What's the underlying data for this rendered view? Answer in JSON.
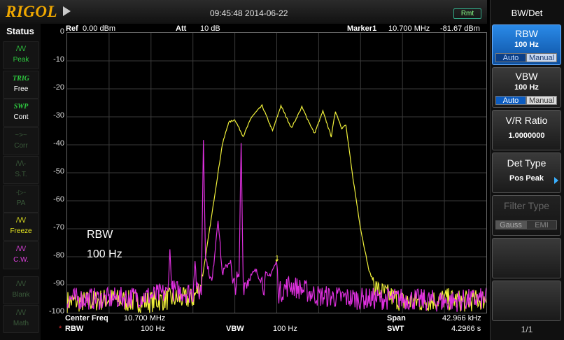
{
  "header": {
    "logo": "RIGOL",
    "datetime": "09:45:48 2014-06-22",
    "remote_badge": "Rmt"
  },
  "status_panel": {
    "title": "Status",
    "items": [
      {
        "icon": "peak-wave-icon",
        "label": "Peak",
        "state": "active-green"
      },
      {
        "icon": "trig-text-icon",
        "top": "TRIG",
        "label": "Free",
        "state": "active-green"
      },
      {
        "icon": "swp-text-icon",
        "top": "SWP",
        "label": "Cont",
        "state": "active-green"
      },
      {
        "icon": "corr-icon",
        "label": "Corr",
        "state": "dim"
      },
      {
        "icon": "st-icon",
        "label": "S.T.",
        "state": "dim"
      },
      {
        "icon": "pa-icon",
        "label": "PA",
        "state": "dim"
      },
      {
        "icon": "freeze-wave-icon",
        "label": "Freeze",
        "state": "active-yellow"
      },
      {
        "icon": "cw-wave-icon",
        "label": "C.W.",
        "state": "active-magenta"
      },
      {
        "icon": "blank-wave-icon",
        "label": "Blank",
        "state": "dim"
      },
      {
        "icon": "math-wave-icon",
        "label": "Math",
        "state": "dim"
      }
    ]
  },
  "graph_header": {
    "ref_label": "Ref",
    "ref_value": "0.00 dBm",
    "att_label": "Att",
    "att_value": "10 dB",
    "marker_label": "Marker1",
    "marker_freq": "10.700 MHz",
    "marker_level": "-81.67 dBm"
  },
  "annotation": {
    "line1": "RBW",
    "line2": "100 Hz"
  },
  "bottom_info": {
    "center_label": "Center Freq",
    "center_value": "10.700 MHz",
    "span_label": "Span",
    "span_value": "42.966 kHz",
    "rbw_marker": "*",
    "rbw_label": "RBW",
    "rbw_value": "100 Hz",
    "vbw_label": "VBW",
    "vbw_value": "100 Hz",
    "swt_label": "SWT",
    "swt_value": "4.2966 s"
  },
  "menu": {
    "title": "BW/Det",
    "rbw": {
      "label": "RBW",
      "value": "100 Hz",
      "opt_auto": "Auto",
      "opt_manual": "Manual",
      "selected": "Manual"
    },
    "vbw": {
      "label": "VBW",
      "value": "100 Hz",
      "opt_auto": "Auto",
      "opt_manual": "Manual",
      "selected": "Auto"
    },
    "vr_ratio": {
      "label": "V/R Ratio",
      "value": "1.0000000"
    },
    "det_type": {
      "label": "Det Type",
      "value": "Pos Peak"
    },
    "filter_type": {
      "label": "Filter Type",
      "opt_gauss": "Gauss",
      "opt_emi": "EMI"
    },
    "page": "1/1"
  },
  "colors": {
    "trace_yellow": "#f0f03a",
    "trace_magenta": "#e030e0",
    "grid": "#3a3a3a",
    "accent_blue": "#1a6fd6",
    "logo_orange": "#f0a800"
  },
  "chart_data": {
    "type": "line",
    "ylim": [
      -100,
      0
    ],
    "yticks": [
      "0",
      "-10",
      "-20",
      "-30",
      "-40",
      "-50",
      "-60",
      "-70",
      "-80",
      "-90",
      "-100"
    ],
    "x_range_relative": [
      0,
      1
    ],
    "grid": true,
    "marker": {
      "label": "1",
      "x": 0.5,
      "y": -81.67
    },
    "series": [
      {
        "color": "yellow",
        "points": [
          [
            0.0,
            -96
          ],
          [
            0.05,
            -96
          ],
          [
            0.1,
            -95
          ],
          [
            0.15,
            -96
          ],
          [
            0.2,
            -96
          ],
          [
            0.25,
            -95
          ],
          [
            0.3,
            -95
          ],
          [
            0.32,
            -90
          ],
          [
            0.33,
            -80
          ],
          [
            0.35,
            -60
          ],
          [
            0.37,
            -40
          ],
          [
            0.385,
            -32
          ],
          [
            0.4,
            -31
          ],
          [
            0.42,
            -37
          ],
          [
            0.44,
            -30
          ],
          [
            0.465,
            -26
          ],
          [
            0.49,
            -35
          ],
          [
            0.51,
            -26
          ],
          [
            0.535,
            -34
          ],
          [
            0.56,
            -26.5
          ],
          [
            0.59,
            -36
          ],
          [
            0.61,
            -28
          ],
          [
            0.63,
            -37
          ],
          [
            0.64,
            -28
          ],
          [
            0.655,
            -34
          ],
          [
            0.665,
            -33
          ],
          [
            0.68,
            -50
          ],
          [
            0.7,
            -70
          ],
          [
            0.72,
            -85
          ],
          [
            0.74,
            -92
          ],
          [
            0.8,
            -96
          ],
          [
            0.85,
            -96
          ],
          [
            0.9,
            -95
          ],
          [
            0.95,
            -96
          ],
          [
            1.0,
            -95
          ]
        ]
      },
      {
        "color": "magenta",
        "points": [
          [
            0.0,
            -95
          ],
          [
            0.1,
            -95
          ],
          [
            0.2,
            -94
          ],
          [
            0.24,
            -93
          ],
          [
            0.245,
            -78
          ],
          [
            0.25,
            -92
          ],
          [
            0.3,
            -93
          ],
          [
            0.305,
            -81
          ],
          [
            0.31,
            -93
          ],
          [
            0.32,
            -92
          ],
          [
            0.325,
            -38
          ],
          [
            0.33,
            -80
          ],
          [
            0.345,
            -90
          ],
          [
            0.35,
            -82
          ],
          [
            0.36,
            -66
          ],
          [
            0.37,
            -86
          ],
          [
            0.39,
            -81
          ],
          [
            0.395,
            -91
          ],
          [
            0.41,
            -88
          ],
          [
            0.415,
            -39
          ],
          [
            0.42,
            -90
          ],
          [
            0.45,
            -85
          ],
          [
            0.47,
            -90
          ],
          [
            0.5,
            -82
          ],
          [
            0.505,
            -93
          ],
          [
            0.53,
            -90
          ],
          [
            0.6,
            -94
          ],
          [
            0.7,
            -95
          ],
          [
            0.8,
            -95
          ],
          [
            0.9,
            -96
          ],
          [
            1.0,
            -95
          ]
        ]
      }
    ]
  }
}
